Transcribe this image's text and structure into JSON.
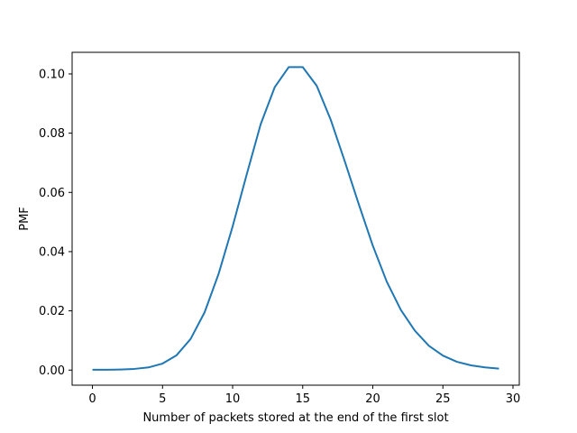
{
  "chart_data": {
    "type": "line",
    "title": "",
    "xlabel": "Number of packets stored at the end of the first slot",
    "ylabel": "PMF",
    "xlim": [
      -1.45,
      30.45
    ],
    "ylim": [
      -0.0051,
      0.1073
    ],
    "grid": false,
    "legend": "none",
    "x_ticks": [
      0,
      5,
      10,
      15,
      20,
      25,
      30
    ],
    "x_tick_labels": [
      "0",
      "5",
      "10",
      "15",
      "20",
      "25",
      "30"
    ],
    "y_ticks": [
      0.0,
      0.02,
      0.04,
      0.06,
      0.08,
      0.1
    ],
    "y_tick_labels": [
      "0.00",
      "0.02",
      "0.04",
      "0.06",
      "0.08",
      "0.10"
    ],
    "series": [
      {
        "color": "#1f77b4",
        "x": [
          0,
          1,
          2,
          3,
          4,
          5,
          6,
          7,
          8,
          9,
          10,
          11,
          12,
          13,
          14,
          15,
          16,
          17,
          18,
          19,
          20,
          21,
          22,
          23,
          24,
          25,
          26,
          27,
          28,
          29
        ],
        "y": [
          0.0001,
          0.0001,
          0.0002,
          0.0004,
          0.0009,
          0.0022,
          0.005,
          0.0105,
          0.0195,
          0.0325,
          0.0485,
          0.066,
          0.083,
          0.0955,
          0.1023,
          0.1023,
          0.096,
          0.0845,
          0.0705,
          0.056,
          0.042,
          0.0298,
          0.0203,
          0.0133,
          0.0082,
          0.0049,
          0.0028,
          0.0016,
          0.0009,
          0.0005
        ]
      }
    ]
  }
}
